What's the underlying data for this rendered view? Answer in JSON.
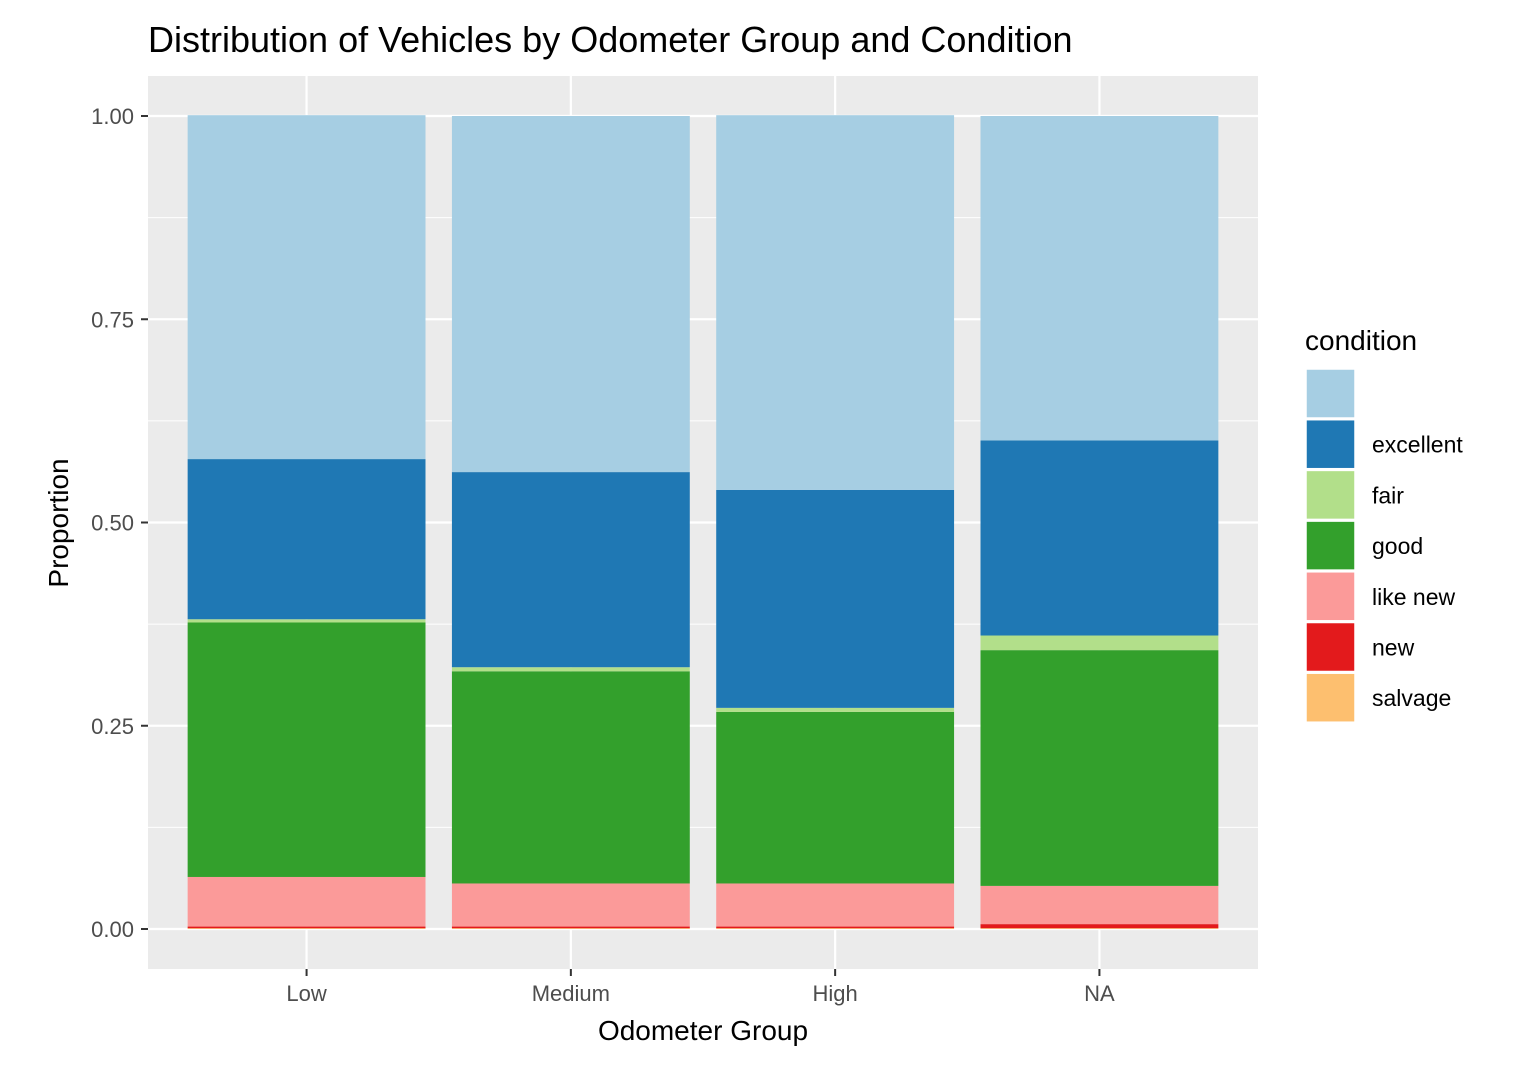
{
  "chart_data": {
    "type": "bar",
    "stacked": true,
    "normalized": true,
    "title": "Distribution of Vehicles by Odometer Group and Condition",
    "xlabel": "Odometer Group",
    "ylabel": "Proportion",
    "categories": [
      "Low",
      "Medium",
      "High",
      "NA"
    ],
    "ylim": [
      0,
      1
    ],
    "y_ticks": [
      {
        "value": 0,
        "label": "0.00"
      },
      {
        "value": 0.25,
        "label": "0.25"
      },
      {
        "value": 0.5,
        "label": "0.50"
      },
      {
        "value": 0.75,
        "label": "0.75"
      },
      {
        "value": 1,
        "label": "1.00"
      }
    ],
    "grid": true,
    "legend": {
      "title": "condition",
      "position": "right"
    },
    "series": [
      {
        "name": "",
        "color": "#A6CEE3",
        "values": [
          0.423,
          0.438,
          0.461,
          0.399
        ]
      },
      {
        "name": "excellent",
        "color": "#1F78B4",
        "values": [
          0.197,
          0.24,
          0.268,
          0.24
        ]
      },
      {
        "name": "fair",
        "color": "#B2DF8A",
        "values": [
          0.004,
          0.005,
          0.005,
          0.018
        ]
      },
      {
        "name": "good",
        "color": "#33A02C",
        "values": [
          0.313,
          0.261,
          0.211,
          0.29
        ]
      },
      {
        "name": "like new",
        "color": "#FB9A99",
        "values": [
          0.061,
          0.053,
          0.053,
          0.047
        ]
      },
      {
        "name": "new",
        "color": "#E31A1C",
        "values": [
          0.002,
          0.002,
          0.002,
          0.005
        ]
      },
      {
        "name": "salvage",
        "color": "#FDBF6F",
        "values": [
          0.001,
          0.001,
          0.001,
          0.001
        ]
      }
    ]
  }
}
